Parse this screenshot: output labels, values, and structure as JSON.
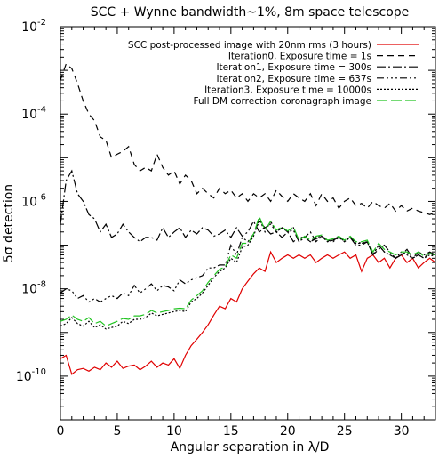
{
  "chart_data": {
    "type": "line",
    "title": "SCC + Wynne bandwidth~1%, 8m space telescope",
    "xlabel": "Angular separation in λ/D",
    "ylabel": "5σ detection",
    "xlim": [
      0,
      33
    ],
    "ylim": [
      1e-11,
      0.01
    ],
    "yscale": "log",
    "grid": false,
    "legend_position": "top-right",
    "x_ticks": [
      {
        "value": 0,
        "label": "0"
      },
      {
        "value": 5,
        "label": "5"
      },
      {
        "value": 10,
        "label": "10"
      },
      {
        "value": 15,
        "label": "15"
      },
      {
        "value": 20,
        "label": "20"
      },
      {
        "value": 25,
        "label": "25"
      },
      {
        "value": 30,
        "label": "30"
      }
    ],
    "y_ticks": [
      {
        "value": 0.01,
        "base": "10",
        "exp": "-2"
      },
      {
        "value": 0.0001,
        "base": "10",
        "exp": "-4"
      },
      {
        "value": 1e-06,
        "base": "10",
        "exp": "-6"
      },
      {
        "value": 1e-08,
        "base": "10",
        "exp": "-8"
      },
      {
        "value": 1e-10,
        "base": "10",
        "exp": "-10"
      }
    ],
    "series": [
      {
        "name": "SCC post-processed image with 20nm rms (3 hours)",
        "color": "#e00000",
        "dash": "",
        "x": [
          0,
          0.5,
          1,
          1.5,
          2,
          2.5,
          3,
          3.5,
          4,
          4.5,
          5,
          5.5,
          6,
          6.5,
          7,
          7.5,
          8,
          8.5,
          9,
          9.5,
          10,
          10.5,
          11,
          11.5,
          12,
          12.5,
          13,
          13.5,
          14,
          14.5,
          15,
          15.5,
          16,
          16.5,
          17,
          17.5,
          18,
          18.5,
          19,
          19.5,
          20,
          20.5,
          21,
          21.5,
          22,
          22.5,
          23,
          23.5,
          24,
          24.5,
          25,
          25.5,
          26,
          26.5,
          27,
          27.5,
          28,
          28.5,
          29,
          29.5,
          30,
          30.5,
          31,
          31.5,
          32,
          32.5,
          33
        ],
        "y": [
          2.5e-10,
          3e-10,
          1.1e-10,
          1.4e-10,
          1.5e-10,
          1.3e-10,
          1.6e-10,
          1.4e-10,
          2e-10,
          1.6e-10,
          2.2e-10,
          1.5e-10,
          1.7e-10,
          1.8e-10,
          1.4e-10,
          1.7e-10,
          2.2e-10,
          1.6e-10,
          2e-10,
          1.8e-10,
          2.5e-10,
          1.5e-10,
          3e-10,
          5e-10,
          7e-10,
          1e-09,
          1.5e-09,
          2.5e-09,
          4e-09,
          3.5e-09,
          6e-09,
          5e-09,
          1e-08,
          1.5e-08,
          2.2e-08,
          3e-08,
          2.5e-08,
          7e-08,
          4e-08,
          5e-08,
          6e-08,
          5e-08,
          6e-08,
          5e-08,
          6e-08,
          4e-08,
          5e-08,
          6e-08,
          5e-08,
          6e-08,
          7e-08,
          5e-08,
          6e-08,
          2.5e-08,
          5e-08,
          6e-08,
          4e-08,
          5e-08,
          3e-08,
          5e-08,
          6e-08,
          4e-08,
          5e-08,
          3e-08,
          4e-08,
          5e-08,
          4e-08
        ]
      },
      {
        "name": "Iteration0, Exposure time = 1s",
        "color": "#000000",
        "dash": "7 5",
        "x": [
          0,
          0.5,
          1,
          1.5,
          2,
          2.5,
          3,
          3.5,
          4,
          4.5,
          5,
          5.5,
          6,
          6.5,
          7,
          7.5,
          8,
          8.5,
          9,
          9.5,
          10,
          10.5,
          11,
          11.5,
          12,
          12.5,
          13,
          13.5,
          14,
          14.5,
          15,
          15.5,
          16,
          16.5,
          17,
          17.5,
          18,
          18.5,
          19,
          19.5,
          20,
          20.5,
          21,
          21.5,
          22,
          22.5,
          23,
          23.5,
          24,
          24.5,
          25,
          25.5,
          26,
          26.5,
          27,
          27.5,
          28,
          28.5,
          29,
          29.5,
          30,
          30.5,
          31,
          31.5,
          32,
          32.5,
          33
        ],
        "y": [
          0.0006,
          0.0014,
          0.0011,
          0.0005,
          0.0002,
          0.0001,
          7e-05,
          3e-05,
          2.5e-05,
          1e-05,
          1.2e-05,
          1.4e-05,
          1.8e-05,
          7e-06,
          5e-06,
          6e-06,
          5e-06,
          1.2e-05,
          6e-06,
          4e-06,
          5e-06,
          2.5e-06,
          4e-06,
          3e-06,
          1.5e-06,
          2e-06,
          1.5e-06,
          1.2e-06,
          2e-06,
          1.5e-06,
          1.8e-06,
          1.2e-06,
          1.5e-06,
          1e-06,
          1.5e-06,
          1.2e-06,
          1.5e-06,
          1e-06,
          1.8e-06,
          1.3e-06,
          1e-06,
          1.5e-06,
          1.2e-06,
          1e-06,
          1.5e-06,
          8e-07,
          1.5e-06,
          1e-06,
          1.2e-06,
          7e-07,
          1e-06,
          1.2e-06,
          8e-07,
          9e-07,
          7e-07,
          1e-06,
          8e-07,
          7e-07,
          9e-07,
          6e-07,
          8e-07,
          6e-07,
          7e-07,
          6e-07,
          5.5e-07,
          5e-07,
          5.5e-07
        ]
      },
      {
        "name": "Iteration1, Exposure time = 300s",
        "color": "#000000",
        "dash": "10 3 2 3",
        "x": [
          0,
          0.5,
          1,
          1.5,
          2,
          2.5,
          3,
          3.5,
          4,
          4.5,
          5,
          5.5,
          6,
          6.5,
          7,
          7.5,
          8,
          8.5,
          9,
          9.5,
          10,
          10.5,
          11,
          11.5,
          12,
          12.5,
          13,
          13.5,
          14,
          14.5,
          15,
          15.5,
          16,
          16.5,
          17,
          17.5,
          18,
          18.5,
          19,
          19.5,
          20,
          20.5,
          21,
          21.5,
          22,
          22.5,
          23,
          23.5,
          24,
          24.5,
          25,
          25.5,
          26,
          26.5,
          27,
          27.5,
          28,
          28.5,
          29,
          29.5,
          30,
          30.5,
          31,
          31.5,
          32,
          32.5,
          33
        ],
        "y": [
          3e-07,
          3e-06,
          5e-06,
          1.5e-06,
          1e-06,
          5e-07,
          4e-07,
          2e-07,
          3e-07,
          1.5e-07,
          1.8e-07,
          3e-07,
          2e-07,
          1.5e-07,
          1.2e-07,
          1.5e-07,
          1.5e-07,
          1.3e-07,
          2.5e-07,
          1.5e-07,
          2e-07,
          2.5e-07,
          1.5e-07,
          2.2e-07,
          1.8e-07,
          2.5e-07,
          2.2e-07,
          1.6e-07,
          1.8e-07,
          2.2e-07,
          1.5e-07,
          2.5e-07,
          1.6e-07,
          2e-07,
          3.5e-07,
          2e-07,
          2.5e-07,
          1.8e-07,
          2e-07,
          1.5e-07,
          2e-07,
          1.2e-07,
          1.5e-07,
          1.5e-07,
          2e-07,
          1.2e-07,
          1.6e-07,
          1.3e-07,
          1.2e-07,
          1.5e-07,
          1.3e-07,
          1.5e-07,
          1e-07,
          1e-07,
          1.2e-07,
          6e-08,
          8e-08,
          1e-07,
          7e-08,
          5e-08,
          6e-08,
          8e-08,
          5e-08,
          7e-08,
          6e-08,
          7e-08,
          6e-08
        ]
      },
      {
        "name": "Iteration2, Exposure time =  637s",
        "color": "#000000",
        "dash": "8 3 2 3 2 3 2 3",
        "x": [
          0,
          0.5,
          1,
          1.5,
          2,
          2.5,
          3,
          3.5,
          4,
          4.5,
          5,
          5.5,
          6,
          6.5,
          7,
          7.5,
          8,
          8.5,
          9,
          9.5,
          10,
          10.5,
          11,
          11.5,
          12,
          12.5,
          13,
          13.5,
          14,
          14.5,
          15,
          15.5,
          16,
          16.5,
          17,
          17.5,
          18,
          18.5,
          19,
          19.5,
          20,
          20.5,
          21,
          21.5,
          22,
          22.5,
          23,
          23.5,
          24,
          24.5,
          25,
          25.5,
          26,
          26.5,
          27,
          27.5,
          28,
          28.5,
          29,
          29.5,
          30,
          30.5,
          31,
          31.5,
          32,
          32.5,
          33
        ],
        "y": [
          8e-09,
          1e-08,
          9e-09,
          6e-09,
          7e-09,
          5e-09,
          6e-09,
          5e-09,
          6e-09,
          7e-09,
          6e-09,
          8e-09,
          7e-09,
          1.2e-08,
          8e-09,
          1e-08,
          1.3e-08,
          9e-09,
          1.2e-08,
          1.1e-08,
          9e-09,
          1.6e-08,
          1.3e-08,
          1.6e-08,
          1.8e-08,
          2e-08,
          3e-08,
          3e-08,
          3.5e-08,
          3.5e-08,
          1e-07,
          6e-08,
          1.5e-07,
          1.2e-07,
          1.8e-07,
          3.5e-07,
          2.5e-07,
          3e-07,
          2e-07,
          2.5e-07,
          2e-07,
          2.2e-07,
          1.2e-07,
          1.5e-07,
          1.2e-07,
          1.4e-07,
          1.6e-07,
          1.2e-07,
          1.3e-07,
          1.5e-07,
          1.2e-07,
          1.5e-07,
          1.2e-07,
          1.1e-07,
          1.2e-07,
          6e-08,
          1e-07,
          7e-08,
          6e-08,
          5e-08,
          6e-08,
          7e-08,
          5e-08,
          6e-08,
          5e-08,
          7e-08,
          6e-08
        ]
      },
      {
        "name": "Iteration3, Exposure time = 10000s",
        "color": "#000000",
        "dash": "2 2",
        "x": [
          0,
          0.5,
          1,
          1.5,
          2,
          2.5,
          3,
          3.5,
          4,
          4.5,
          5,
          5.5,
          6,
          6.5,
          7,
          7.5,
          8,
          8.5,
          9,
          9.5,
          10,
          10.5,
          11,
          11.5,
          12,
          12.5,
          13,
          13.5,
          14,
          14.5,
          15,
          15.5,
          16,
          16.5,
          17,
          17.5,
          18,
          18.5,
          19,
          19.5,
          20,
          20.5,
          21,
          21.5,
          22,
          22.5,
          23,
          23.5,
          24,
          24.5,
          25,
          25.5,
          26,
          26.5,
          27,
          27.5,
          28,
          28.5,
          29,
          29.5,
          30,
          30.5,
          31,
          31.5,
          32,
          32.5,
          33
        ],
        "y": [
          1.4e-09,
          1.6e-09,
          2.2e-09,
          1.6e-09,
          1.4e-09,
          1.8e-09,
          1.3e-09,
          1.5e-09,
          1.2e-09,
          1.3e-09,
          1.4e-09,
          1.8e-09,
          1.6e-09,
          2e-09,
          2e-09,
          2.2e-09,
          2.8e-09,
          2.4e-09,
          2.6e-09,
          2.8e-09,
          3e-09,
          3.2e-09,
          3e-09,
          5e-09,
          6e-09,
          8e-09,
          1.2e-08,
          1.8e-08,
          2.5e-08,
          3e-08,
          5e-08,
          4e-08,
          9e-08,
          1e-07,
          1.6e-07,
          4e-07,
          2e-07,
          3.5e-07,
          2e-07,
          2.5e-07,
          2e-07,
          2.5e-07,
          1.2e-07,
          1.5e-07,
          1.2e-07,
          1.5e-07,
          1.6e-07,
          1.2e-07,
          1.3e-07,
          1.6e-07,
          1.2e-07,
          1.5e-07,
          1.1e-07,
          1.1e-07,
          1.2e-07,
          6e-08,
          1e-07,
          7e-08,
          6e-08,
          5e-08,
          7e-08,
          6e-08,
          5e-08,
          6e-08,
          5e-08,
          6e-08,
          5.5e-08
        ]
      },
      {
        "name": "Full DM correction coronagraph image",
        "color": "#22c422",
        "dash": "12 4",
        "x": [
          0,
          0.5,
          1,
          1.5,
          2,
          2.5,
          3,
          3.5,
          4,
          4.5,
          5,
          5.5,
          6,
          6.5,
          7,
          7.5,
          8,
          8.5,
          9,
          9.5,
          10,
          10.5,
          11,
          11.5,
          12,
          12.5,
          13,
          13.5,
          14,
          14.5,
          15,
          15.5,
          16,
          16.5,
          17,
          17.5,
          18,
          18.5,
          19,
          19.5,
          20,
          20.5,
          21,
          21.5,
          22,
          22.5,
          23,
          23.5,
          24,
          24.5,
          25,
          25.5,
          26,
          26.5,
          27,
          27.5,
          28,
          28.5,
          29,
          29.5,
          30,
          30.5,
          31,
          31.5,
          32,
          32.5,
          33
        ],
        "y": [
          1.8e-09,
          2e-09,
          2.5e-09,
          2e-09,
          1.8e-09,
          2.2e-09,
          1.6e-09,
          1.8e-09,
          1.4e-09,
          1.6e-09,
          1.8e-09,
          2.1e-09,
          2e-09,
          2.4e-09,
          2.4e-09,
          2.6e-09,
          3.2e-09,
          2.8e-09,
          3e-09,
          3.2e-09,
          3.5e-09,
          3.6e-09,
          3.5e-09,
          5.5e-09,
          7e-09,
          9e-09,
          1.4e-08,
          2e-08,
          2.8e-08,
          3.2e-08,
          6e-08,
          5e-08,
          1.1e-07,
          1.1e-07,
          1.8e-07,
          4.5e-07,
          2.2e-07,
          3.5e-07,
          2.2e-07,
          2.6e-07,
          2.1e-07,
          2.6e-07,
          1.3e-07,
          1.6e-07,
          1.3e-07,
          1.6e-07,
          1.7e-07,
          1.3e-07,
          1.4e-07,
          1.6e-07,
          1.3e-07,
          1.6e-07,
          1.2e-07,
          1.2e-07,
          1.3e-07,
          7e-08,
          1.1e-07,
          8e-08,
          7e-08,
          6e-08,
          7e-08,
          7e-08,
          6e-08,
          7e-08,
          5.5e-08,
          6.5e-08,
          6e-08
        ]
      }
    ]
  }
}
